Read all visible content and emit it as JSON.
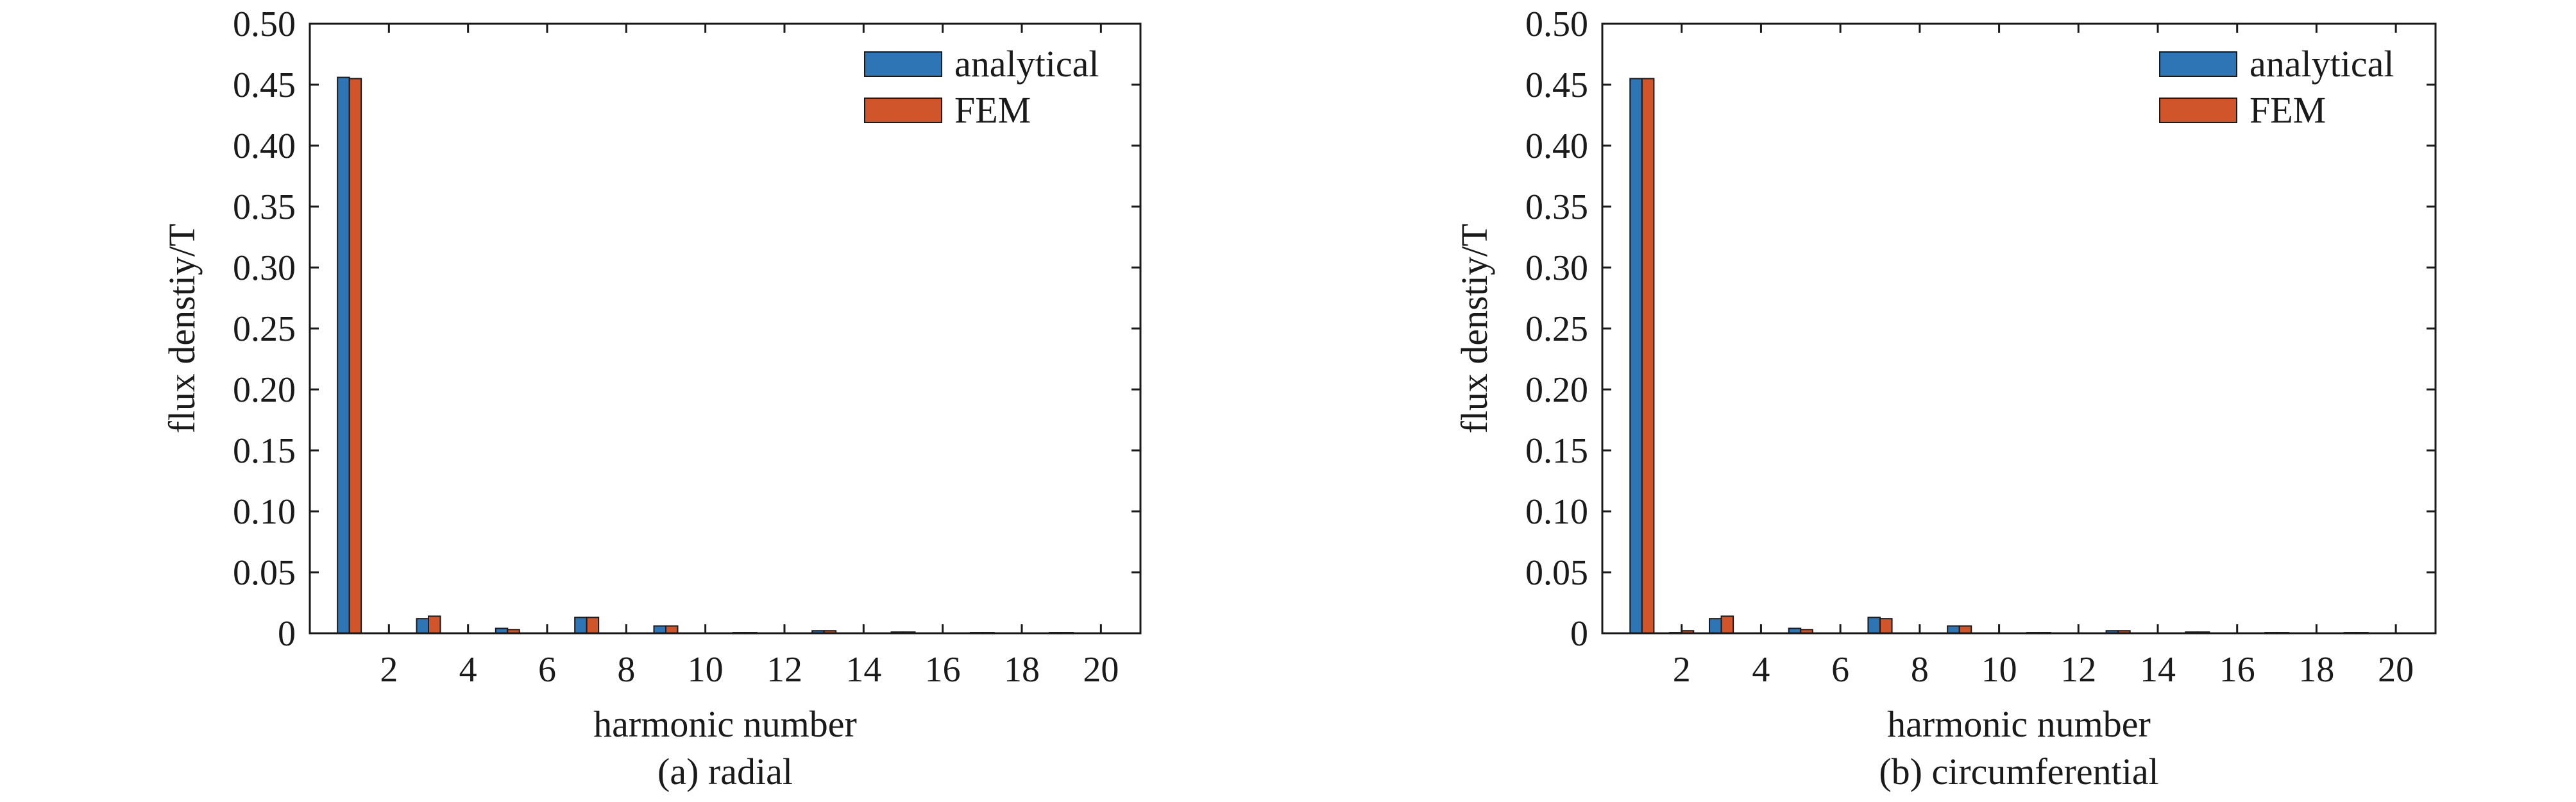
{
  "chart_data": [
    {
      "type": "bar",
      "caption": "(a) radial",
      "xlabel": "harmonic number",
      "ylabel": "flux denstiy/T",
      "ylim": [
        0,
        0.5
      ],
      "xlim": [
        0,
        21
      ],
      "x_ticks": [
        "2",
        "4",
        "6",
        "8",
        "10",
        "12",
        "14",
        "16",
        "18",
        "20"
      ],
      "y_ticks": [
        "0",
        "0.05",
        "0.10",
        "0.15",
        "0.20",
        "0.25",
        "0.30",
        "0.35",
        "0.40",
        "0.45",
        "0.50"
      ],
      "legend_position": "top-right",
      "categories": [
        1,
        2,
        3,
        4,
        5,
        6,
        7,
        8,
        9,
        10,
        11,
        12,
        13,
        14,
        15,
        16,
        17,
        18,
        19,
        20
      ],
      "series": [
        {
          "name": "analytical",
          "color": "#2e75b6",
          "values": [
            0.456,
            0,
            0.012,
            0,
            0.004,
            0,
            0.013,
            0,
            0.006,
            0,
            0.0005,
            0,
            0.002,
            0,
            0.001,
            0,
            0.0005,
            0,
            0.0005,
            0
          ]
        },
        {
          "name": "FEM",
          "color": "#d0552a",
          "values": [
            0.455,
            0,
            0.014,
            0,
            0.003,
            0,
            0.013,
            0,
            0.006,
            0,
            0.0005,
            0,
            0.002,
            0,
            0.001,
            0,
            0.0005,
            0,
            0.0005,
            0
          ]
        }
      ]
    },
    {
      "type": "bar",
      "caption": "(b) circumferential",
      "xlabel": "harmonic number",
      "ylabel": "flux denstiy/T",
      "ylim": [
        0,
        0.5
      ],
      "xlim": [
        0,
        21
      ],
      "x_ticks": [
        "2",
        "4",
        "6",
        "8",
        "10",
        "12",
        "14",
        "16",
        "18",
        "20"
      ],
      "y_ticks": [
        "0",
        "0.05",
        "0.10",
        "0.15",
        "0.20",
        "0.25",
        "0.30",
        "0.35",
        "0.40",
        "0.45",
        "0.50"
      ],
      "legend_position": "top-right",
      "categories": [
        1,
        2,
        3,
        4,
        5,
        6,
        7,
        8,
        9,
        10,
        11,
        12,
        13,
        14,
        15,
        16,
        17,
        18,
        19,
        20
      ],
      "series": [
        {
          "name": "analytical",
          "color": "#2e75b6",
          "values": [
            0.455,
            0.0005,
            0.012,
            0,
            0.004,
            0,
            0.013,
            0,
            0.006,
            0,
            0.0005,
            0,
            0.002,
            0,
            0.001,
            0,
            0.0005,
            0,
            0.0005,
            0
          ]
        },
        {
          "name": "FEM",
          "color": "#d0552a",
          "values": [
            0.455,
            0.002,
            0.014,
            0,
            0.003,
            0,
            0.012,
            0,
            0.006,
            0,
            0.0005,
            0,
            0.002,
            0,
            0.001,
            0,
            0.0005,
            0,
            0.0005,
            0
          ]
        }
      ]
    }
  ]
}
